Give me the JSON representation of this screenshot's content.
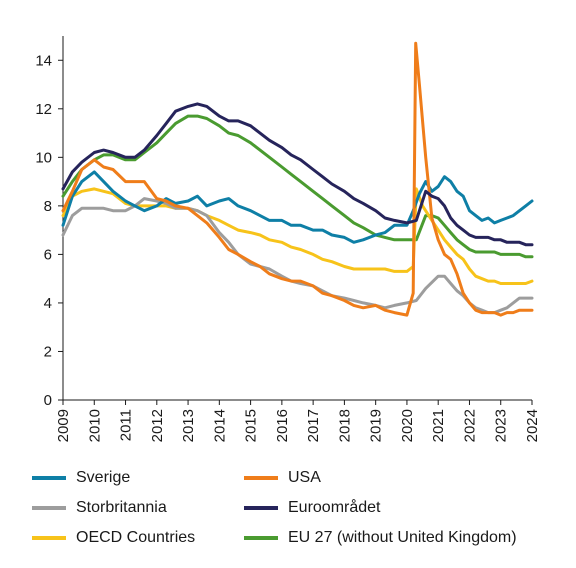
{
  "chart_data": {
    "type": "line",
    "x_ticks": [
      "2009",
      "2010",
      "2011",
      "2012",
      "2013",
      "2014",
      "2015",
      "2016",
      "2017",
      "2018",
      "2019",
      "2020",
      "2021",
      "2022",
      "2023",
      "2024"
    ],
    "y_ticks": [
      "0",
      "2",
      "4",
      "6",
      "8",
      "10",
      "12",
      "14"
    ],
    "xlim": [
      2009,
      2024
    ],
    "ylim": [
      0,
      15
    ],
    "grid": false,
    "legend_position": "bottom",
    "series": [
      {
        "name": "Sverige",
        "color": "#0e7fa6",
        "x": [
          2009.0,
          2009.3,
          2009.6,
          2010.0,
          2010.3,
          2010.6,
          2011.0,
          2011.3,
          2011.6,
          2012.0,
          2012.3,
          2012.6,
          2013.0,
          2013.3,
          2013.6,
          2014.0,
          2014.3,
          2014.6,
          2015.0,
          2015.3,
          2015.6,
          2016.0,
          2016.3,
          2016.6,
          2017.0,
          2017.3,
          2017.6,
          2018.0,
          2018.3,
          2018.6,
          2019.0,
          2019.3,
          2019.6,
          2020.0,
          2020.2,
          2020.4,
          2020.6,
          2020.8,
          2021.0,
          2021.2,
          2021.4,
          2021.6,
          2021.8,
          2022.0,
          2022.2,
          2022.4,
          2022.6,
          2022.8,
          2023.0,
          2023.2,
          2023.4,
          2023.6,
          2023.8,
          2024.0
        ],
        "values": [
          7.2,
          8.4,
          9.0,
          9.4,
          9.0,
          8.6,
          8.2,
          8.0,
          7.8,
          8.0,
          8.3,
          8.1,
          8.2,
          8.4,
          8.0,
          8.2,
          8.3,
          8.0,
          7.8,
          7.6,
          7.4,
          7.4,
          7.2,
          7.2,
          7.0,
          7.0,
          6.8,
          6.7,
          6.5,
          6.6,
          6.8,
          6.9,
          7.2,
          7.2,
          7.8,
          8.5,
          9.0,
          8.6,
          8.8,
          9.2,
          9.0,
          8.6,
          8.4,
          7.8,
          7.6,
          7.4,
          7.5,
          7.3,
          7.4,
          7.5,
          7.6,
          7.8,
          8.0,
          8.2
        ]
      },
      {
        "name": "USA",
        "color": "#ef7d1a",
        "x": [
          2009.0,
          2009.3,
          2009.6,
          2010.0,
          2010.3,
          2010.6,
          2011.0,
          2011.3,
          2011.6,
          2012.0,
          2012.3,
          2012.6,
          2013.0,
          2013.3,
          2013.6,
          2014.0,
          2014.3,
          2014.6,
          2015.0,
          2015.3,
          2015.6,
          2016.0,
          2016.3,
          2016.6,
          2017.0,
          2017.3,
          2017.6,
          2018.0,
          2018.3,
          2018.6,
          2019.0,
          2019.3,
          2019.6,
          2020.0,
          2020.2,
          2020.28,
          2020.4,
          2020.6,
          2020.8,
          2021.0,
          2021.2,
          2021.4,
          2021.6,
          2021.8,
          2022.0,
          2022.2,
          2022.4,
          2022.6,
          2022.8,
          2023.0,
          2023.2,
          2023.4,
          2023.6,
          2023.8,
          2024.0
        ],
        "values": [
          7.8,
          8.6,
          9.5,
          9.9,
          9.6,
          9.5,
          9.0,
          9.0,
          9.0,
          8.3,
          8.2,
          8.0,
          7.9,
          7.6,
          7.3,
          6.7,
          6.2,
          6.0,
          5.7,
          5.5,
          5.2,
          5.0,
          4.9,
          4.9,
          4.7,
          4.4,
          4.3,
          4.1,
          3.9,
          3.8,
          3.9,
          3.7,
          3.6,
          3.5,
          4.4,
          14.7,
          13.0,
          10.0,
          7.5,
          6.6,
          6.0,
          5.8,
          5.2,
          4.4,
          4.0,
          3.7,
          3.6,
          3.6,
          3.6,
          3.5,
          3.6,
          3.6,
          3.7,
          3.7,
          3.7
        ]
      },
      {
        "name": "Storbritannia",
        "color": "#9d9d9d",
        "x": [
          2009.0,
          2009.3,
          2009.6,
          2010.0,
          2010.3,
          2010.6,
          2011.0,
          2011.3,
          2011.6,
          2012.0,
          2012.3,
          2012.6,
          2013.0,
          2013.3,
          2013.6,
          2014.0,
          2014.3,
          2014.6,
          2015.0,
          2015.3,
          2015.6,
          2016.0,
          2016.3,
          2016.6,
          2017.0,
          2017.3,
          2017.6,
          2018.0,
          2018.3,
          2018.6,
          2019.0,
          2019.3,
          2019.6,
          2020.0,
          2020.3,
          2020.6,
          2021.0,
          2021.2,
          2021.4,
          2021.6,
          2021.8,
          2022.0,
          2022.2,
          2022.4,
          2022.6,
          2022.8,
          2023.0,
          2023.2,
          2023.4,
          2023.6,
          2023.8,
          2024.0
        ],
        "values": [
          6.8,
          7.6,
          7.9,
          7.9,
          7.9,
          7.8,
          7.8,
          8.0,
          8.3,
          8.2,
          8.1,
          7.9,
          7.9,
          7.8,
          7.6,
          6.9,
          6.5,
          6.0,
          5.6,
          5.5,
          5.4,
          5.1,
          4.9,
          4.8,
          4.7,
          4.5,
          4.3,
          4.2,
          4.1,
          4.0,
          3.9,
          3.8,
          3.9,
          4.0,
          4.1,
          4.6,
          5.1,
          5.1,
          4.8,
          4.5,
          4.3,
          4.0,
          3.8,
          3.7,
          3.6,
          3.6,
          3.7,
          3.8,
          4.0,
          4.2,
          4.2,
          4.2
        ]
      },
      {
        "name": "Euroområdet",
        "color": "#26245b",
        "x": [
          2009.0,
          2009.3,
          2009.6,
          2010.0,
          2010.3,
          2010.6,
          2011.0,
          2011.3,
          2011.6,
          2012.0,
          2012.3,
          2012.6,
          2013.0,
          2013.3,
          2013.6,
          2014.0,
          2014.3,
          2014.6,
          2015.0,
          2015.3,
          2015.6,
          2016.0,
          2016.3,
          2016.6,
          2017.0,
          2017.3,
          2017.6,
          2018.0,
          2018.3,
          2018.6,
          2019.0,
          2019.3,
          2019.6,
          2020.0,
          2020.3,
          2020.6,
          2020.8,
          2021.0,
          2021.2,
          2021.4,
          2021.6,
          2021.8,
          2022.0,
          2022.2,
          2022.4,
          2022.6,
          2022.8,
          2023.0,
          2023.2,
          2023.4,
          2023.6,
          2023.8,
          2024.0
        ],
        "values": [
          8.7,
          9.4,
          9.8,
          10.2,
          10.3,
          10.2,
          10.0,
          10.0,
          10.3,
          10.9,
          11.4,
          11.9,
          12.1,
          12.2,
          12.1,
          11.7,
          11.5,
          11.5,
          11.3,
          11.0,
          10.7,
          10.4,
          10.1,
          9.9,
          9.5,
          9.2,
          8.9,
          8.6,
          8.3,
          8.1,
          7.8,
          7.5,
          7.4,
          7.3,
          7.4,
          8.6,
          8.4,
          8.3,
          8.0,
          7.5,
          7.2,
          7.0,
          6.8,
          6.7,
          6.7,
          6.7,
          6.6,
          6.6,
          6.5,
          6.5,
          6.5,
          6.4,
          6.4
        ]
      },
      {
        "name": "OECD Countries",
        "color": "#f7c31a",
        "x": [
          2009.0,
          2009.3,
          2009.6,
          2010.0,
          2010.3,
          2010.6,
          2011.0,
          2011.3,
          2011.6,
          2012.0,
          2012.3,
          2012.6,
          2013.0,
          2013.3,
          2013.6,
          2014.0,
          2014.3,
          2014.6,
          2015.0,
          2015.3,
          2015.6,
          2016.0,
          2016.3,
          2016.6,
          2017.0,
          2017.3,
          2017.6,
          2018.0,
          2018.3,
          2018.6,
          2019.0,
          2019.3,
          2019.6,
          2020.0,
          2020.2,
          2020.3,
          2020.5,
          2020.8,
          2021.0,
          2021.2,
          2021.4,
          2021.6,
          2021.8,
          2022.0,
          2022.2,
          2022.4,
          2022.6,
          2022.8,
          2023.0,
          2023.2,
          2023.4,
          2023.6,
          2023.8,
          2024.0
        ],
        "values": [
          7.6,
          8.4,
          8.6,
          8.7,
          8.6,
          8.5,
          8.1,
          8.0,
          8.0,
          8.0,
          8.0,
          7.9,
          7.9,
          7.8,
          7.6,
          7.4,
          7.2,
          7.0,
          6.9,
          6.8,
          6.6,
          6.5,
          6.3,
          6.2,
          6.0,
          5.8,
          5.7,
          5.5,
          5.4,
          5.4,
          5.4,
          5.4,
          5.3,
          5.3,
          5.5,
          8.7,
          8.0,
          7.4,
          7.0,
          6.6,
          6.3,
          6.0,
          5.8,
          5.4,
          5.1,
          5.0,
          4.9,
          4.9,
          4.8,
          4.8,
          4.8,
          4.8,
          4.8,
          4.9
        ]
      },
      {
        "name": "EU 27 (without United Kingdom)",
        "color": "#4a9b30",
        "x": [
          2009.0,
          2009.3,
          2009.6,
          2010.0,
          2010.3,
          2010.6,
          2011.0,
          2011.3,
          2011.6,
          2012.0,
          2012.3,
          2012.6,
          2013.0,
          2013.3,
          2013.6,
          2014.0,
          2014.3,
          2014.6,
          2015.0,
          2015.3,
          2015.6,
          2016.0,
          2016.3,
          2016.6,
          2017.0,
          2017.3,
          2017.6,
          2018.0,
          2018.3,
          2018.6,
          2019.0,
          2019.3,
          2019.6,
          2020.0,
          2020.3,
          2020.6,
          2020.8,
          2021.0,
          2021.2,
          2021.4,
          2021.6,
          2021.8,
          2022.0,
          2022.2,
          2022.4,
          2022.6,
          2022.8,
          2023.0,
          2023.2,
          2023.4,
          2023.6,
          2023.8,
          2024.0
        ],
        "values": [
          8.4,
          9.0,
          9.5,
          9.9,
          10.1,
          10.1,
          9.9,
          9.9,
          10.2,
          10.6,
          11.0,
          11.4,
          11.7,
          11.7,
          11.6,
          11.3,
          11.0,
          10.9,
          10.6,
          10.3,
          10.0,
          9.6,
          9.3,
          9.0,
          8.6,
          8.3,
          8.0,
          7.6,
          7.3,
          7.1,
          6.8,
          6.7,
          6.6,
          6.6,
          6.6,
          7.6,
          7.6,
          7.5,
          7.2,
          6.9,
          6.6,
          6.4,
          6.2,
          6.1,
          6.1,
          6.1,
          6.1,
          6.0,
          6.0,
          6.0,
          6.0,
          5.9,
          5.9
        ]
      }
    ]
  }
}
